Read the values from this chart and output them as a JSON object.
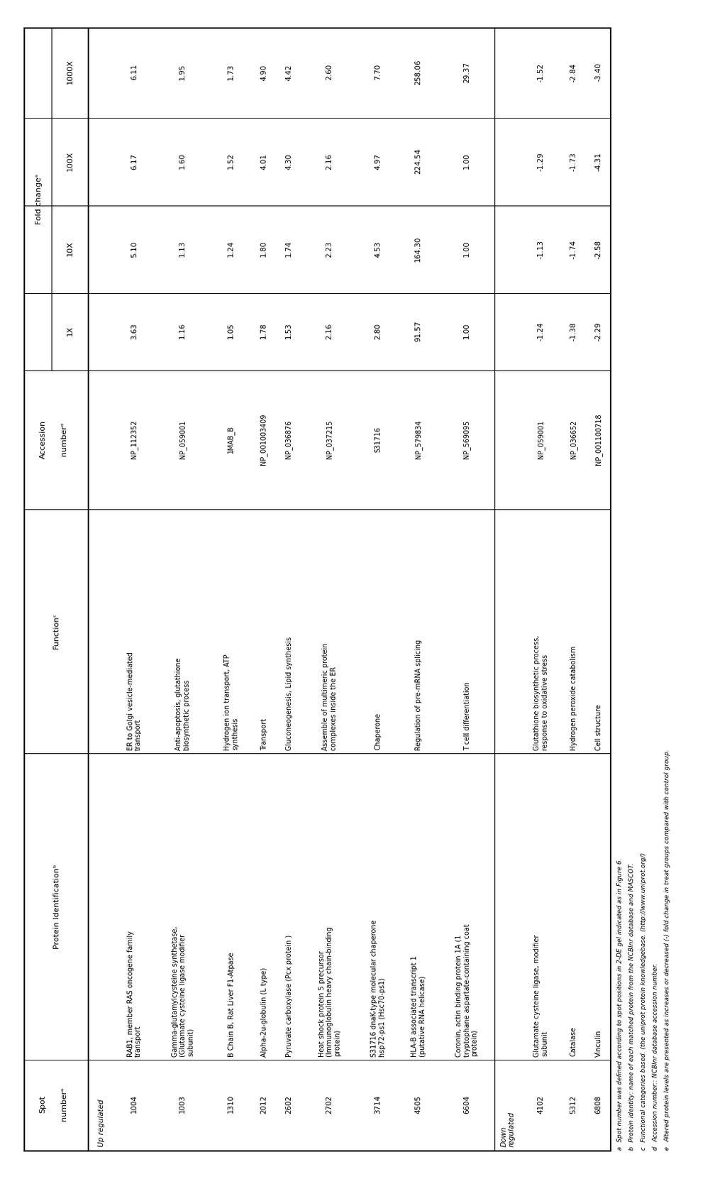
{
  "up_regulated_rows": [
    {
      "spot": "1004",
      "protein": "RAB1, member RAS oncogene family\ntransport",
      "function": "ER to Golgi vesicle-mediated\ntransport",
      "accession": "NP_112352",
      "1X": "3.63",
      "10X": "5.10",
      "100X": "6.17",
      "1000X": "6.11"
    },
    {
      "spot": "1003",
      "protein": "Gamma-glutamylcysteine synthetase,\n(Glutamate cysteine ligase modifier\nsubunit)",
      "function": "Anti-apoptosis, glutathione\nbiosynthetic process",
      "accession": "NP_059001",
      "1X": "1.16",
      "10X": "1.13",
      "100X": "1.60",
      "1000X": "1.95"
    },
    {
      "spot": "1310",
      "protein": "B Chain B, Rat Liver F1-Atpase",
      "function": "Hydrogen ion transport, ATP\nsynthesis",
      "accession": "1MAB_B",
      "1X": "1.05",
      "10X": "1.24",
      "100X": "1.52",
      "1000X": "1.73"
    },
    {
      "spot": "2012",
      "protein": "Alpha-2u-globulin (L type)",
      "function": "Transport",
      "accession": "NP_001003409",
      "1X": "1.78",
      "10X": "1.80",
      "100X": "4.01",
      "1000X": "4.90"
    },
    {
      "spot": "2602",
      "protein": "Pyruvate carboxylase (Pcx protein )",
      "function": "Gluconeogenesis, Lipid synthesis",
      "accession": "NP_036876",
      "1X": "1.53",
      "10X": "1.74",
      "100X": "4.30",
      "1000X": "4.42"
    },
    {
      "spot": "2702",
      "protein": "Heat shock protein 5 precursor\n(Immunoglobulin heavy chain-binding\nprotein)",
      "function": "Assemble of multimeric protein\ncomplexes inside the ER",
      "accession": "NP_037215",
      "1X": "2.16",
      "10X": "2.23",
      "100X": "2.16",
      "1000X": "2.60"
    },
    {
      "spot": "3714",
      "protein": "S31716 dnaK-type molecular chaperone\nhsp72-ps1 (Hsc70-ps1)",
      "function": "Chaperone",
      "accession": "S31716",
      "1X": "2.80",
      "10X": "4.53",
      "100X": "4.97",
      "1000X": "7.70"
    },
    {
      "spot": "4505",
      "protein": "HLA-B associated transcript 1\n(putative RNA helicase)",
      "function": "Regulation of pre-mRNA splicing",
      "accession": "NP_579834",
      "1X": "91.57",
      "10X": "164.30",
      "100X": "224.54",
      "1000X": "258.06"
    },
    {
      "spot": "6604",
      "protein": "Coronin, actin binding protein 1A (1\ntryptophane aspartate-containing coat\nprotein)",
      "function": "T cell differentiation",
      "accession": "NP_569095",
      "1X": "1.00",
      "10X": "1.00",
      "100X": "1.00",
      "1000X": "29.37"
    }
  ],
  "down_regulated_rows": [
    {
      "spot": "4102",
      "protein": "Glutamate cysteine ligase, modifier\nsubunit",
      "function": "Glutathione biosynthetic process,\nresponse to oxidative stress",
      "accession": "NP_059001",
      "1X": "-1.24",
      "10X": "-1.13",
      "100X": "-1.29",
      "1000X": "-1.52"
    },
    {
      "spot": "5312",
      "protein": "Catalase",
      "function": "Hydrogen peroxide catabolism",
      "accession": "NP_036652",
      "1X": "-1.38",
      "10X": "-1.74",
      "100X": "-1.73",
      "1000X": "-2.84"
    },
    {
      "spot": "6808",
      "protein": "Vinculin",
      "function": "Cell structure",
      "accession": "NP_001100718",
      "1X": "-2.29",
      "10X": "-2.58",
      "100X": "-4.31",
      "1000X": "-3.40"
    }
  ],
  "footnotes": [
    "a Spot number was defined according to spot positions in 2-DE gel indicated as in Figure 6.",
    "b Protein identity: name of each matched protein from the NCBInr database and MASCOT.",
    "c Functional categories based. (the uniprot protein knowledgebase. (http://www.uniprot.org/)",
    "d Accession number:: NCBInr database accession number.",
    "e Altered protein levels are presented as increases or decreased (-) fold change in treat groups compared with control group."
  ],
  "footnote_superscripts": [
    "a",
    "b",
    "c",
    "d",
    "e"
  ],
  "fontsize_header": 8.0,
  "fontsize_data": 7.5,
  "fontsize_footnote": 6.5
}
